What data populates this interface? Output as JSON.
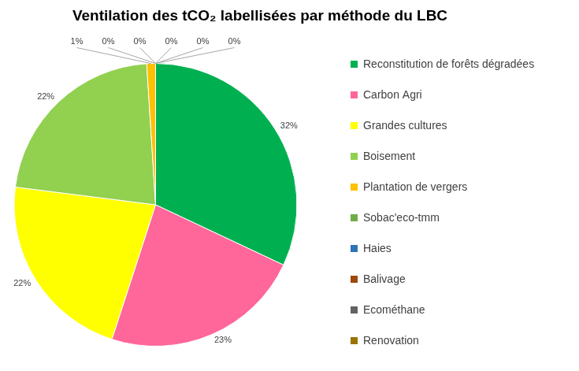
{
  "chart_data": {
    "type": "pie",
    "title": "Ventilation des tCO₂ labellisées par méthode du LBC",
    "categories": [
      "Reconstitution de forêts dégradées",
      "Carbon Agri",
      "Grandes cultures",
      "Boisement",
      "Plantation de vergers",
      "Sobac'eco-tmm",
      "Haies",
      "Balivage",
      "Ecométhane",
      "Renovation"
    ],
    "values": [
      32,
      23,
      22,
      22,
      1,
      0,
      0,
      0,
      0,
      0
    ],
    "value_labels": [
      "32%",
      "23%",
      "22%",
      "22%",
      "1%",
      "0%",
      "0%",
      "0%",
      "0%",
      "0%"
    ],
    "colors": [
      "#00b050",
      "#ff6699",
      "#ffff00",
      "#92d050",
      "#ffc000",
      "#70ad47",
      "#2e75b6",
      "#9e480e",
      "#636363",
      "#997300"
    ],
    "data_labels": true,
    "legend": "right"
  }
}
